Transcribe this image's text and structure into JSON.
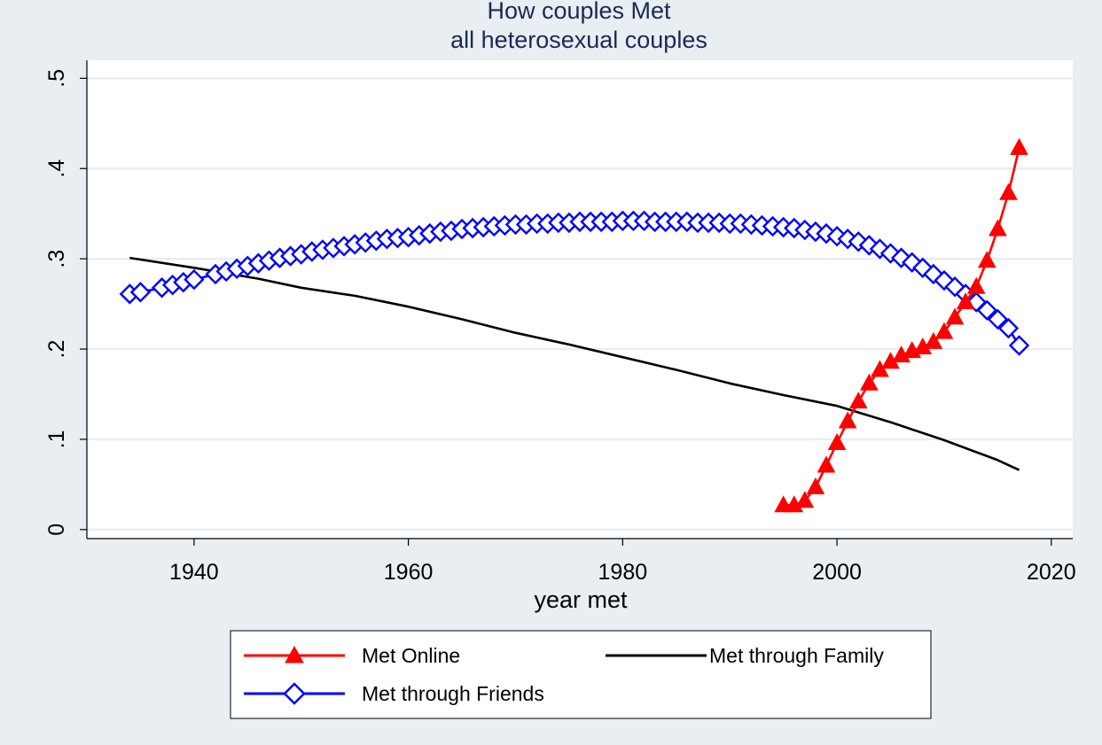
{
  "chart_data": {
    "type": "line",
    "title": "How couples Met",
    "subtitle": "all heterosexual couples",
    "xlabel": "year met",
    "ylabel": "",
    "xlim": [
      1930,
      2022
    ],
    "ylim": [
      -0.01,
      0.52
    ],
    "x_ticks": [
      1940,
      1960,
      1980,
      2000,
      2020
    ],
    "x_tick_labels": [
      "1940",
      "1960",
      "1980",
      "2000",
      "2020"
    ],
    "y_ticks": [
      0,
      0.1,
      0.2,
      0.3,
      0.4,
      0.5
    ],
    "y_tick_labels": [
      "0",
      ".1",
      ".2",
      ".3",
      ".4",
      ".5"
    ],
    "grid": "horizontal",
    "legend_position": "bottom",
    "colors": {
      "background": "#e8eef1",
      "plot_background": "#ffffff",
      "grid": "#e8eef1",
      "online": "#ff0000",
      "family": "#000000",
      "friends": "#0000ff"
    },
    "series": [
      {
        "name": "Met Online",
        "marker": "triangle",
        "color": "#ff0000",
        "x": [
          1995,
          1996,
          1997,
          1998,
          1999,
          2000,
          2001,
          2002,
          2003,
          2004,
          2005,
          2006,
          2007,
          2008,
          2009,
          2010,
          2011,
          2012,
          2013,
          2014,
          2015,
          2016,
          2017
        ],
        "y": [
          0.027,
          0.027,
          0.032,
          0.047,
          0.071,
          0.096,
          0.12,
          0.142,
          0.162,
          0.177,
          0.186,
          0.193,
          0.198,
          0.202,
          0.208,
          0.219,
          0.235,
          0.252,
          0.269,
          0.298,
          0.333,
          0.373,
          0.423
        ]
      },
      {
        "name": "Met through Family",
        "marker": "none",
        "color": "#000000",
        "x": [
          1934,
          1940,
          1946,
          1950,
          1955,
          1960,
          1965,
          1970,
          1975,
          1980,
          1985,
          1990,
          1995,
          2000,
          2005,
          2010,
          2015,
          2017
        ],
        "y": [
          0.301,
          0.29,
          0.278,
          0.268,
          0.259,
          0.247,
          0.233,
          0.218,
          0.205,
          0.191,
          0.177,
          0.162,
          0.149,
          0.137,
          0.119,
          0.099,
          0.077,
          0.066
        ]
      },
      {
        "name": "Met through Friends",
        "marker": "diamond",
        "color": "#0000ff",
        "x": [
          1934,
          1935,
          1937,
          1938,
          1939,
          1940,
          1942,
          1943,
          1944,
          1945,
          1946,
          1947,
          1948,
          1949,
          1950,
          1951,
          1952,
          1953,
          1954,
          1955,
          1956,
          1957,
          1958,
          1959,
          1960,
          1961,
          1962,
          1963,
          1964,
          1965,
          1966,
          1967,
          1968,
          1969,
          1970,
          1971,
          1972,
          1973,
          1974,
          1975,
          1976,
          1977,
          1978,
          1979,
          1980,
          1981,
          1982,
          1983,
          1984,
          1985,
          1986,
          1987,
          1988,
          1989,
          1990,
          1991,
          1992,
          1993,
          1994,
          1995,
          1996,
          1997,
          1998,
          1999,
          2000,
          2001,
          2002,
          2003,
          2004,
          2005,
          2006,
          2007,
          2008,
          2009,
          2010,
          2011,
          2012,
          2013,
          2014,
          2015,
          2016,
          2017
        ],
        "y": [
          0.261,
          0.263,
          0.268,
          0.271,
          0.274,
          0.277,
          0.283,
          0.286,
          0.289,
          0.292,
          0.295,
          0.298,
          0.301,
          0.303,
          0.305,
          0.308,
          0.31,
          0.312,
          0.314,
          0.316,
          0.318,
          0.32,
          0.322,
          0.323,
          0.324,
          0.326,
          0.328,
          0.33,
          0.331,
          0.333,
          0.334,
          0.335,
          0.336,
          0.337,
          0.338,
          0.338,
          0.339,
          0.339,
          0.34,
          0.34,
          0.341,
          0.341,
          0.341,
          0.341,
          0.342,
          0.342,
          0.342,
          0.341,
          0.341,
          0.341,
          0.341,
          0.34,
          0.34,
          0.34,
          0.339,
          0.339,
          0.338,
          0.337,
          0.336,
          0.335,
          0.334,
          0.332,
          0.33,
          0.328,
          0.325,
          0.322,
          0.319,
          0.315,
          0.311,
          0.306,
          0.301,
          0.296,
          0.29,
          0.283,
          0.276,
          0.269,
          0.261,
          0.252,
          0.243,
          0.233,
          0.223,
          0.204
        ]
      }
    ]
  }
}
